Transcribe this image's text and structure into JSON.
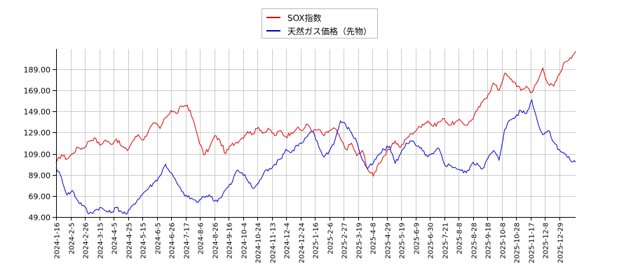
{
  "chart_data": {
    "type": "line",
    "title": "",
    "xlabel": "",
    "ylabel": "",
    "ylim": [
      49,
      208
    ],
    "grid": true,
    "legend_position": "top-center",
    "y_ticks": [
      "49.00",
      "69.00",
      "89.00",
      "109.00",
      "129.00",
      "149.00",
      "169.00",
      "189.00"
    ],
    "x_ticks": [
      "2024-1-16",
      "2024-2-5",
      "2024-2-26",
      "2024-3-15",
      "2024-4-5",
      "2024-4-25",
      "2024-5-15",
      "2024-6-5",
      "2024-6-26",
      "2024-7-17",
      "2024-8-6",
      "2024-8-26",
      "2024-9-16",
      "2024-10-4",
      "2024-10-24",
      "2024-11-13",
      "2024-12-4",
      "2024-12-24",
      "2025-1-16",
      "2025-2-6",
      "2025-2-27",
      "2025-3-19",
      "2025-4-8",
      "2025-4-29",
      "2025-5-19",
      "2025-6-9",
      "2025-6-30",
      "2025-7-21",
      "2025-8-8",
      "2025-8-28",
      "2025-9-18",
      "2025-10-8",
      "2025-10-28",
      "2025-11-17",
      "2025-12-8",
      "2025-12-29"
    ],
    "series": [
      {
        "name": "SOX指数",
        "color": "#e00000",
        "values": [
          100,
          108,
          104,
          109,
          115,
          114,
          121,
          124,
          117,
          122,
          118,
          123,
          116,
          112,
          121,
          127,
          122,
          132,
          138,
          133,
          143,
          150,
          147,
          154,
          155,
          142,
          124,
          108,
          114,
          126,
          121,
          109,
          117,
          120,
          124,
          130,
          128,
          134,
          129,
          132,
          126,
          131,
          125,
          129,
          133,
          131,
          137,
          130,
          132,
          126,
          131,
          133,
          123,
          113,
          119,
          107,
          112,
          94,
          88,
          100,
          107,
          113,
          121,
          115,
          123,
          128,
          132,
          137,
          140,
          135,
          139,
          142,
          136,
          139,
          140,
          136,
          141,
          150,
          158,
          165,
          176,
          169,
          185,
          180,
          176,
          169,
          173,
          167,
          177,
          190,
          175,
          173,
          184,
          196,
          200,
          206
        ]
      },
      {
        "name": "天然ガス価格（先物）",
        "color": "#0000cc",
        "values": [
          96,
          86,
          70,
          74,
          64,
          60,
          52,
          55,
          58,
          55,
          53,
          58,
          54,
          52,
          60,
          66,
          72,
          77,
          82,
          88,
          99,
          91,
          82,
          73,
          68,
          66,
          63,
          68,
          70,
          64,
          67,
          75,
          80,
          93,
          91,
          84,
          76,
          81,
          91,
          95,
          99,
          104,
          113,
          110,
          117,
          119,
          126,
          130,
          116,
          106,
          112,
          122,
          140,
          136,
          129,
          120,
          103,
          95,
          100,
          108,
          113,
          116,
          100,
          109,
          119,
          121,
          116,
          112,
          106,
          109,
          114,
          99,
          98,
          96,
          93,
          91,
          99,
          100,
          95,
          105,
          112,
          103,
          132,
          141,
          144,
          150,
          147,
          160,
          140,
          127,
          131,
          120,
          113,
          109,
          103,
          101
        ]
      }
    ]
  },
  "legend": {
    "items": [
      {
        "label": "SOX指数",
        "color": "#e00000"
      },
      {
        "label": "天然ガス価格（先物）",
        "color": "#0000cc"
      }
    ]
  }
}
